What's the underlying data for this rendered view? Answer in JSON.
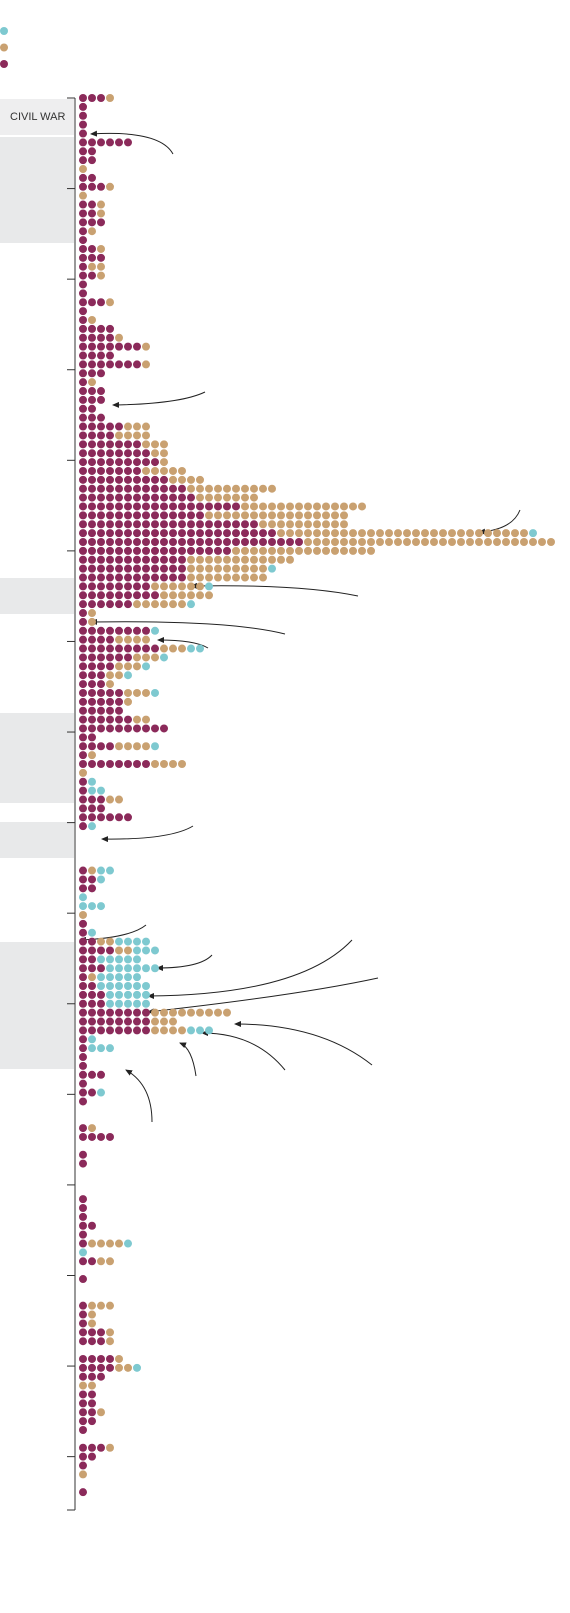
{
  "chart_data": {
    "type": "dot",
    "annotation": "CIVIL WAR",
    "series": [
      {
        "color": "#8b2a5a",
        "values": [
          3,
          1,
          1,
          1,
          1,
          6,
          2,
          2,
          0,
          2,
          3,
          0,
          2,
          2,
          3,
          1,
          1,
          2,
          3,
          1,
          2,
          1,
          1,
          3,
          1,
          1,
          4,
          4,
          7,
          4,
          7,
          3,
          1,
          3,
          3,
          2,
          3,
          5,
          4,
          7,
          8,
          9,
          7,
          10,
          12,
          13,
          18,
          14,
          20,
          22,
          25,
          17,
          12,
          12,
          12,
          8,
          9,
          6,
          1,
          1,
          8,
          4,
          9,
          6,
          4,
          3,
          3,
          5,
          5,
          5,
          6,
          10,
          2,
          4,
          1,
          8,
          0,
          1,
          1,
          3,
          3,
          6,
          1,
          0,
          0,
          0,
          0,
          1,
          2,
          2,
          0,
          0,
          0,
          1,
          1,
          2,
          4,
          2,
          3,
          1,
          2,
          3,
          3,
          8,
          8,
          8,
          1,
          1,
          1,
          1,
          3,
          1,
          2,
          1,
          0,
          0,
          1,
          4,
          0,
          1,
          1,
          0,
          0,
          0,
          1,
          1,
          1,
          2,
          1,
          1,
          0,
          2,
          0,
          1,
          0,
          0,
          1,
          1,
          1,
          3,
          3,
          0,
          4,
          4,
          3,
          0,
          2,
          2,
          2,
          2,
          1,
          0,
          3,
          2,
          1,
          0,
          0,
          1
        ]
      },
      {
        "color": "#c9a171",
        "values": [
          1,
          0,
          0,
          0,
          0,
          0,
          0,
          0,
          1,
          0,
          1,
          1,
          1,
          1,
          0,
          1,
          0,
          1,
          0,
          2,
          1,
          0,
          0,
          1,
          0,
          1,
          0,
          1,
          1,
          0,
          1,
          0,
          1,
          0,
          0,
          0,
          0,
          3,
          4,
          3,
          2,
          1,
          5,
          4,
          10,
          7,
          14,
          16,
          10,
          28,
          28,
          16,
          12,
          9,
          9,
          6,
          6,
          6,
          1,
          1,
          0,
          4,
          3,
          3,
          3,
          2,
          1,
          3,
          1,
          0,
          2,
          0,
          0,
          4,
          1,
          4,
          1,
          0,
          0,
          2,
          0,
          0,
          0,
          0,
          0,
          0,
          0,
          1,
          0,
          0,
          0,
          0,
          1,
          0,
          0,
          2,
          2,
          0,
          0,
          1,
          0,
          0,
          0,
          9,
          3,
          4,
          0,
          0,
          0,
          0,
          0,
          0,
          0,
          0,
          0,
          0,
          1,
          0,
          0,
          0,
          0,
          0,
          0,
          0,
          0,
          0,
          0,
          0,
          0,
          4,
          0,
          2,
          0,
          0,
          0,
          0,
          3,
          1,
          1,
          1,
          1,
          0,
          1,
          2,
          0,
          2,
          0,
          0,
          1,
          0,
          0,
          0,
          1,
          0,
          0,
          1,
          0,
          0
        ]
      },
      {
        "color": "#7ec9d0",
        "values": [
          0,
          0,
          0,
          0,
          0,
          0,
          0,
          0,
          0,
          0,
          0,
          0,
          0,
          0,
          0,
          0,
          0,
          0,
          0,
          0,
          0,
          0,
          0,
          0,
          0,
          0,
          0,
          0,
          0,
          0,
          0,
          0,
          0,
          0,
          0,
          0,
          0,
          0,
          0,
          0,
          0,
          0,
          0,
          0,
          0,
          0,
          0,
          0,
          0,
          1,
          0,
          0,
          0,
          1,
          0,
          1,
          0,
          1,
          0,
          0,
          1,
          0,
          2,
          1,
          1,
          1,
          0,
          1,
          0,
          0,
          0,
          0,
          0,
          1,
          0,
          0,
          0,
          1,
          2,
          0,
          0,
          0,
          1,
          0,
          0,
          0,
          0,
          2,
          1,
          0,
          1,
          3,
          0,
          0,
          1,
          4,
          3,
          5,
          6,
          5,
          6,
          5,
          5,
          0,
          0,
          3,
          1,
          3,
          0,
          0,
          0,
          0,
          1,
          0,
          0,
          0,
          0,
          0,
          0,
          0,
          0,
          0,
          0,
          0,
          0,
          0,
          0,
          0,
          0,
          1,
          1,
          0,
          0,
          0,
          0,
          0,
          0,
          0,
          0,
          0,
          0,
          0,
          0,
          1,
          0,
          0,
          0,
          0,
          0,
          0,
          0,
          0,
          0,
          0,
          0,
          0,
          0,
          0
        ]
      }
    ]
  }
}
